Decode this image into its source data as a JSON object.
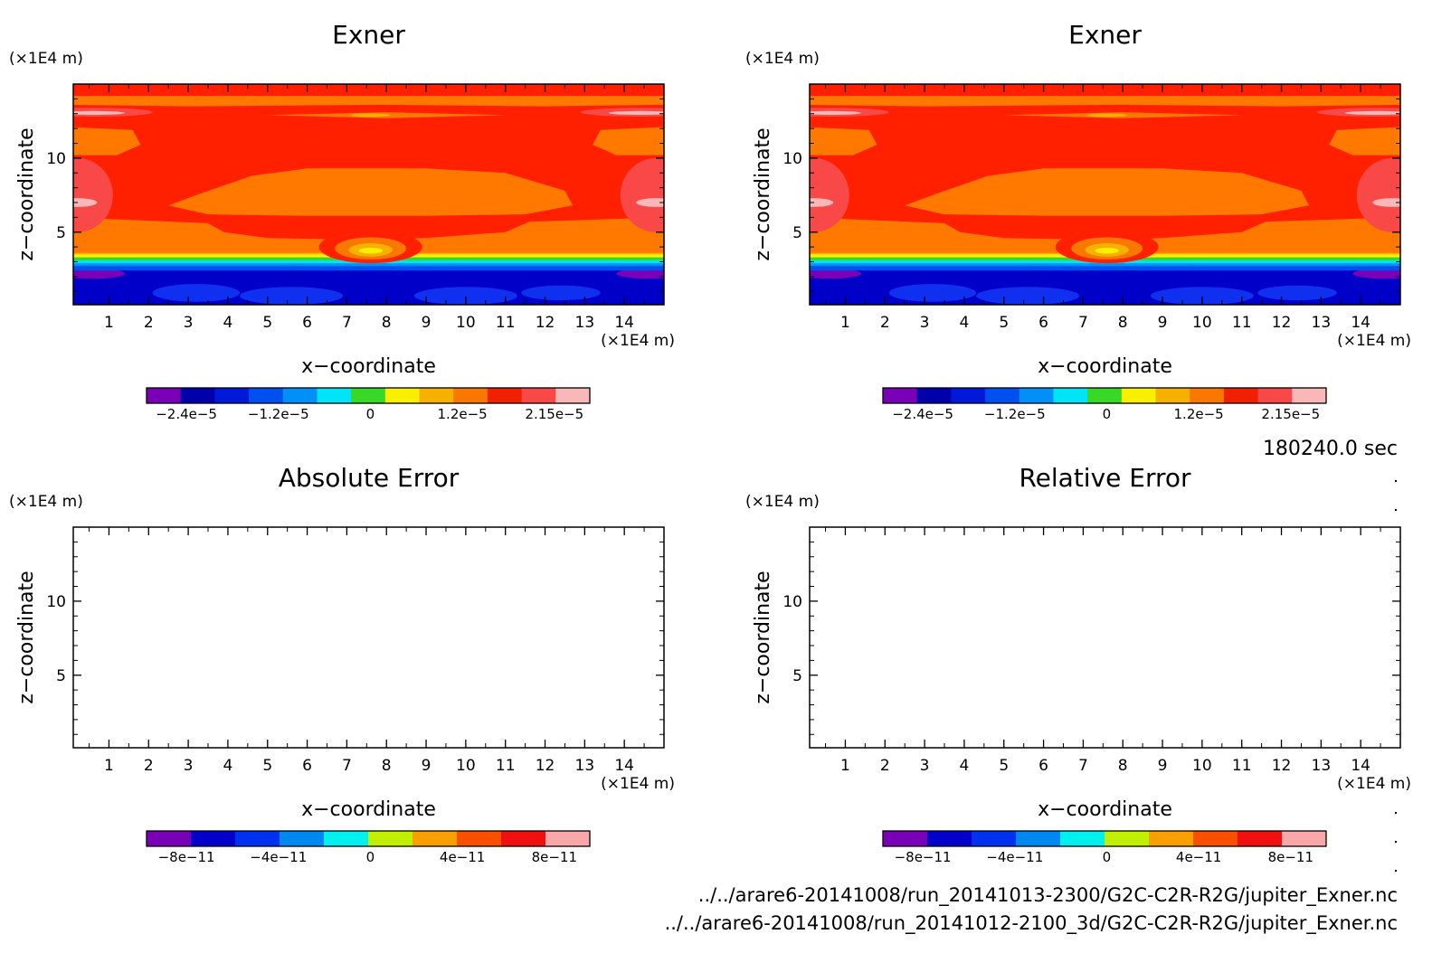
{
  "figure": {
    "time_label": "180240.0 sec",
    "paths": [
      "../../arare6-20141008/run_20141013-2300/G2C-C2R-R2G/jupiter_Exner.nc",
      "../../arare6-20141008/run_20141012-2100_3d/G2C-C2R-R2G/jupiter_Exner.nc"
    ]
  },
  "chart_data": [
    {
      "type": "heatmap",
      "title": "Exner",
      "xlabel": "x−coordinate",
      "ylabel": "z−coordinate",
      "x_unit": "(×1E4 m)",
      "y_unit": "(×1E4 m)",
      "xlim": [
        0.1,
        15
      ],
      "ylim": [
        0.1,
        15
      ],
      "x_ticks": [
        "1",
        "2",
        "3",
        "4",
        "5",
        "6",
        "7",
        "8",
        "9",
        "10",
        "11",
        "12",
        "13",
        "14"
      ],
      "y_ticks": [
        "5",
        "10"
      ],
      "colorbar": {
        "labels": [
          "−2.4e−5",
          "−1.2e−5",
          "0",
          "1.2e−5",
          "2.15e−5"
        ],
        "colors": [
          "#7a00b8",
          "#0000aa",
          "#0018d8",
          "#0050f0",
          "#0090f8",
          "#00e4f8",
          "#38d828",
          "#f8f000",
          "#f8b000",
          "#f87800",
          "#f02000",
          "#f84848",
          "#f8b8b8"
        ]
      },
      "fields": {
        "deep_blue": "#0000c8",
        "blue": "#1030f0",
        "orange": "#ff7800",
        "red": "#ff2000"
      }
    },
    {
      "type": "heatmap",
      "title": "Exner",
      "xlabel": "x−coordinate",
      "ylabel": "z−coordinate",
      "x_unit": "(×1E4 m)",
      "y_unit": "(×1E4 m)",
      "xlim": [
        0.1,
        15
      ],
      "ylim": [
        0.1,
        15
      ],
      "x_ticks": [
        "1",
        "2",
        "3",
        "4",
        "5",
        "6",
        "7",
        "8",
        "9",
        "10",
        "11",
        "12",
        "13",
        "14"
      ],
      "y_ticks": [
        "5",
        "10"
      ],
      "colorbar": {
        "labels": [
          "−2.4e−5",
          "−1.2e−5",
          "0",
          "1.2e−5",
          "2.15e−5"
        ],
        "colors": [
          "#7a00b8",
          "#0000aa",
          "#0018d8",
          "#0050f0",
          "#0090f8",
          "#00e4f8",
          "#38d828",
          "#f8f000",
          "#f8b000",
          "#f87800",
          "#f02000",
          "#f84848",
          "#f8b8b8"
        ]
      },
      "fields": {
        "deep_blue": "#0000c8",
        "blue": "#1030f0",
        "orange": "#ff7800",
        "red": "#ff2000"
      }
    },
    {
      "type": "heatmap",
      "title": "Absolute Error",
      "xlabel": "x−coordinate",
      "ylabel": "z−coordinate",
      "x_unit": "(×1E4 m)",
      "y_unit": "(×1E4 m)",
      "xlim": [
        0.1,
        15
      ],
      "ylim": [
        0.1,
        15
      ],
      "x_ticks": [
        "1",
        "2",
        "3",
        "4",
        "5",
        "6",
        "7",
        "8",
        "9",
        "10",
        "11",
        "12",
        "13",
        "14"
      ],
      "y_ticks": [
        "5",
        "10"
      ],
      "colorbar": {
        "labels": [
          "−8e−11",
          "−4e−11",
          "0",
          "4e−11",
          "8e−11"
        ],
        "colors": [
          "#7a00b8",
          "#0000c8",
          "#0030f0",
          "#0088f0",
          "#00f0f0",
          "#c0f000",
          "#f8a000",
          "#f85000",
          "#f01010",
          "#f8a8a8"
        ]
      }
    },
    {
      "type": "heatmap",
      "title": "Relative Error",
      "xlabel": "x−coordinate",
      "ylabel": "z−coordinate",
      "x_unit": "(×1E4 m)",
      "y_unit": "(×1E4 m)",
      "xlim": [
        0.1,
        15
      ],
      "ylim": [
        0.1,
        15
      ],
      "x_ticks": [
        "1",
        "2",
        "3",
        "4",
        "5",
        "6",
        "7",
        "8",
        "9",
        "10",
        "11",
        "12",
        "13",
        "14"
      ],
      "y_ticks": [
        "5",
        "10"
      ],
      "colorbar": {
        "labels": [
          "−8e−11",
          "−4e−11",
          "0",
          "4e−11",
          "8e−11"
        ],
        "colors": [
          "#7a00b8",
          "#0000c8",
          "#0030f0",
          "#0088f0",
          "#00f0f0",
          "#c0f000",
          "#f8a000",
          "#f85000",
          "#f01010",
          "#f8a8a8"
        ]
      }
    }
  ]
}
